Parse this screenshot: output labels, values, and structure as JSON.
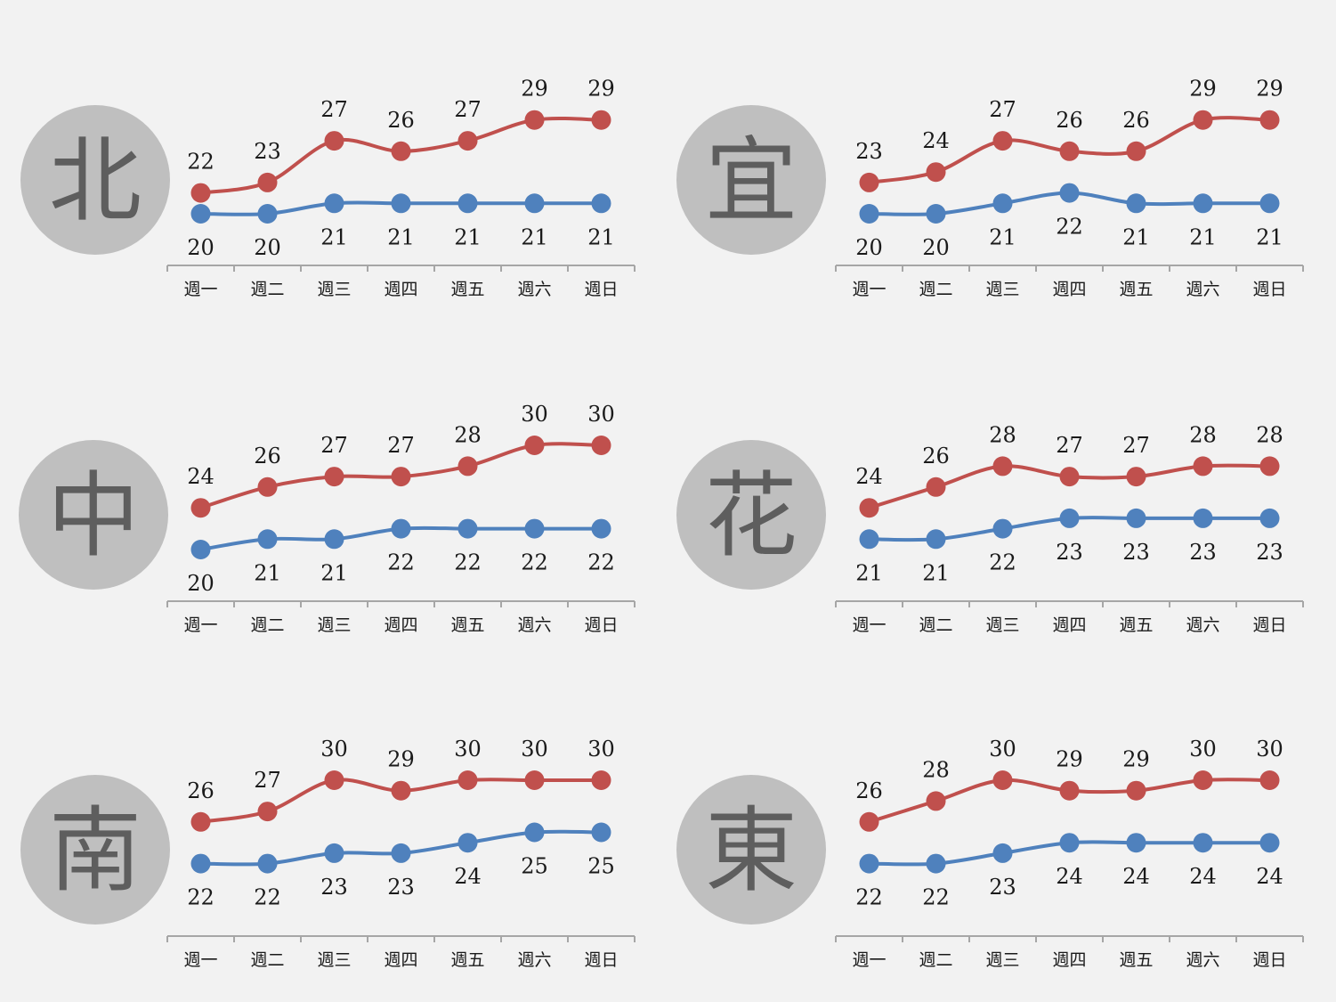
{
  "colors": {
    "background": "#f2f2f2",
    "circle": "#bfbfbf",
    "city_char": "#5e5e5e",
    "high_series": "#c0504d",
    "low_series": "#4f81bd",
    "axis": "#a6a6a6"
  },
  "chart_data": [
    {
      "type": "line",
      "badge": "北",
      "categories": [
        "週一",
        "週二",
        "週三",
        "週四",
        "週五",
        "週六",
        "週日"
      ],
      "series": [
        {
          "values": [
            22,
            23,
            27,
            26,
            27,
            29,
            29
          ]
        },
        {
          "values": [
            20,
            20,
            21,
            21,
            21,
            21,
            21
          ]
        }
      ],
      "ylim": [
        17,
        32
      ],
      "grid": false
    },
    {
      "type": "line",
      "badge": "宜",
      "categories": [
        "週一",
        "週二",
        "週三",
        "週四",
        "週五",
        "週六",
        "週日"
      ],
      "series": [
        {
          "values": [
            23,
            24,
            27,
            26,
            26,
            29,
            29
          ]
        },
        {
          "values": [
            20,
            20,
            21,
            22,
            21,
            21,
            21
          ]
        }
      ],
      "ylim": [
        17,
        32
      ],
      "grid": false
    },
    {
      "type": "line",
      "badge": "中",
      "categories": [
        "週一",
        "週二",
        "週三",
        "週四",
        "週五",
        "週六",
        "週日"
      ],
      "series": [
        {
          "values": [
            24,
            26,
            27,
            27,
            28,
            30,
            30
          ]
        },
        {
          "values": [
            20,
            21,
            21,
            22,
            22,
            22,
            22
          ]
        }
      ],
      "ylim": [
        17,
        32
      ],
      "grid": false
    },
    {
      "type": "line",
      "badge": "花",
      "categories": [
        "週一",
        "週二",
        "週三",
        "週四",
        "週五",
        "週六",
        "週日"
      ],
      "series": [
        {
          "values": [
            24,
            26,
            28,
            27,
            27,
            28,
            28
          ]
        },
        {
          "values": [
            21,
            21,
            22,
            23,
            23,
            23,
            23
          ]
        }
      ],
      "ylim": [
        17,
        32
      ],
      "grid": false
    },
    {
      "type": "line",
      "badge": "南",
      "categories": [
        "週一",
        "週二",
        "週三",
        "週四",
        "週五",
        "週六",
        "週日"
      ],
      "series": [
        {
          "values": [
            26,
            27,
            30,
            29,
            30,
            30,
            30
          ]
        },
        {
          "values": [
            22,
            22,
            23,
            23,
            24,
            25,
            25
          ]
        }
      ],
      "ylim": [
        17,
        32
      ],
      "grid": false
    },
    {
      "type": "line",
      "badge": "東",
      "categories": [
        "週一",
        "週二",
        "週三",
        "週四",
        "週五",
        "週六",
        "週日"
      ],
      "series": [
        {
          "values": [
            26,
            28,
            30,
            29,
            29,
            30,
            30
          ]
        },
        {
          "values": [
            22,
            22,
            23,
            24,
            24,
            24,
            24
          ]
        }
      ],
      "ylim": [
        17,
        32
      ],
      "grid": false
    }
  ]
}
